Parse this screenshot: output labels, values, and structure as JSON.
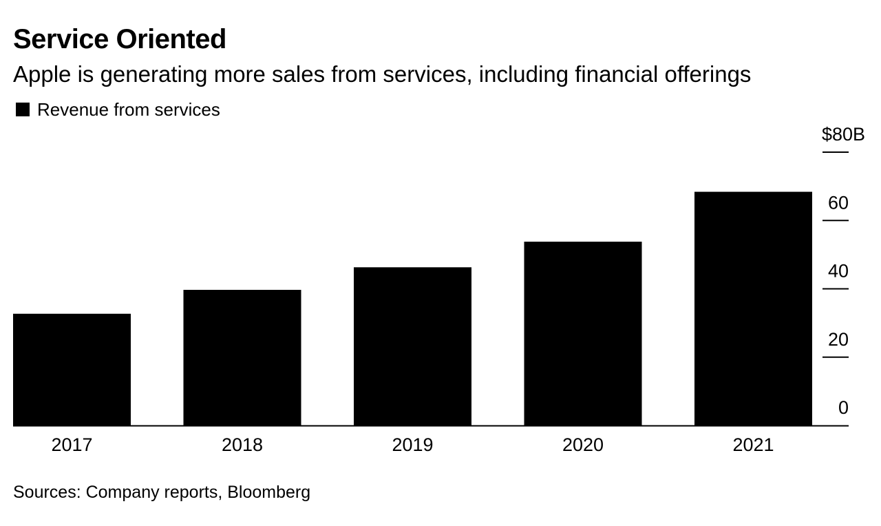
{
  "title": "Service Oriented",
  "subtitle": "Apple is generating more sales from services, including financial offerings",
  "source": "Sources: Company reports, Bloomberg",
  "colors": {
    "bar": "#000000",
    "axis": "#000000",
    "background": "#ffffff"
  },
  "chart_data": {
    "type": "bar",
    "title": "Service Oriented",
    "subtitle": "Apple is generating more sales from services, including financial offerings",
    "categories": [
      "2017",
      "2018",
      "2019",
      "2020",
      "2021"
    ],
    "series": [
      {
        "name": "Revenue from services",
        "values": [
          32.7,
          39.7,
          46.3,
          53.8,
          68.4
        ]
      }
    ],
    "ylim": [
      0,
      80
    ],
    "y_ticks": [
      0,
      20,
      40,
      60,
      80
    ],
    "y_tick_labels": [
      "0",
      "20",
      "40",
      "60",
      "$80B"
    ],
    "y_axis_position": "right",
    "grid": false,
    "legend_position": "top-left",
    "xlabel": "",
    "ylabel": ""
  }
}
